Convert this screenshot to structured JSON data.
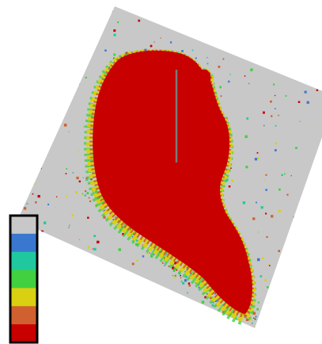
{
  "legend": {
    "colors": [
      "#c8c8c8",
      "#3a78d0",
      "#20c8a0",
      "#40d040",
      "#d8d010",
      "#d06030",
      "#c80000"
    ]
  }
}
